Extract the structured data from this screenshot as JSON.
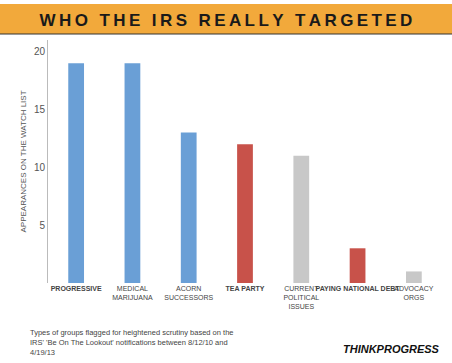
{
  "chart_data": {
    "type": "bar",
    "title": "WHO THE IRS REALLY TARGETED",
    "ylabel": "APPEARANCES ON THE WATCH LIST",
    "categories": [
      "PROGRESSIVE",
      "MEDICAL MARIJUANA",
      "ACORN SUCCESSORS",
      "TEA PARTY",
      "CURRENT POLITICAL ISSUES",
      "PAYING NATIONAL DEBT",
      "ADVOCACY ORGS"
    ],
    "values": [
      19,
      19,
      13,
      12,
      11,
      3,
      1
    ],
    "colors": [
      "#6a9fd6",
      "#6a9fd6",
      "#6a9fd6",
      "#c8524a",
      "#c8c8c8",
      "#c8524a",
      "#c8c8c8"
    ],
    "ylim": [
      0,
      21
    ],
    "yticks": [
      5,
      10,
      15,
      20
    ],
    "grid": false,
    "annotations": [
      "Types of groups flagged for heightened scrutiny based on the IRS' 'Be On The Lookout' notifications between 8/12/10 and 4/19/13",
      "THINKPROGRESS"
    ]
  }
}
